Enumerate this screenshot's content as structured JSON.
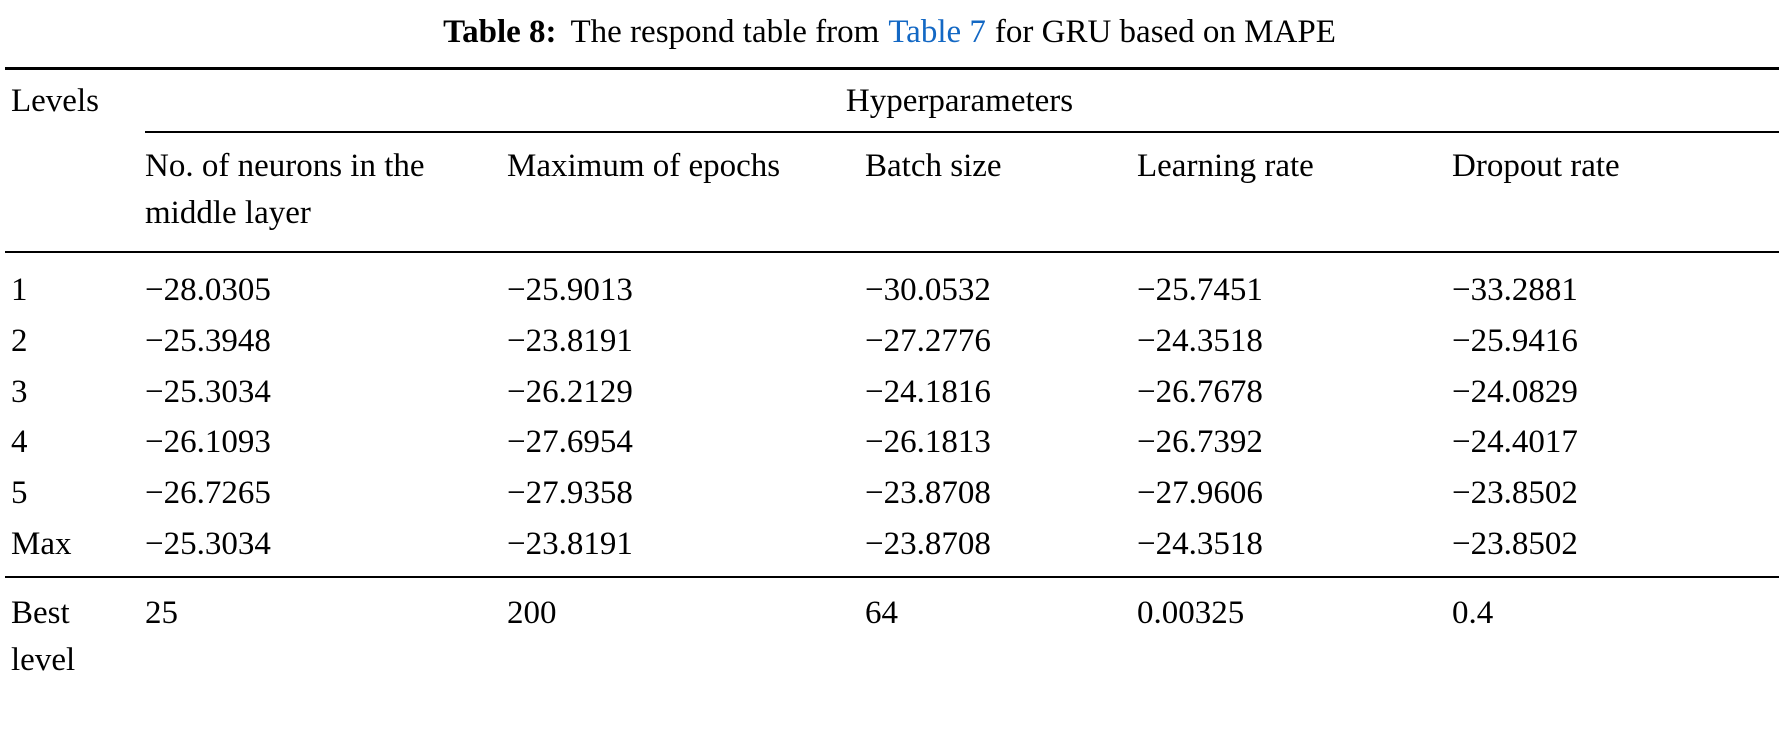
{
  "caption": {
    "label": "Table 8:",
    "text_before_link": "The respond table from",
    "link_text": "Table 7",
    "text_after_link": "for GRU based on MAPE",
    "link_color": "#1368c4"
  },
  "table": {
    "levels_header": "Levels",
    "group_header": "Hyperparameters",
    "columns": [
      "No. of neurons in the middle layer",
      "Maximum of epochs",
      "Batch size",
      "Learning rate",
      "Dropout rate"
    ],
    "rows": [
      {
        "level": "1",
        "values": [
          "−28.0305",
          "−25.9013",
          "−30.0532",
          "−25.7451",
          "−33.2881"
        ]
      },
      {
        "level": "2",
        "values": [
          "−25.3948",
          "−23.8191",
          "−27.2776",
          "−24.3518",
          "−25.9416"
        ]
      },
      {
        "level": "3",
        "values": [
          "−25.3034",
          "−26.2129",
          "−24.1816",
          "−26.7678",
          "−24.0829"
        ]
      },
      {
        "level": "4",
        "values": [
          "−26.1093",
          "−27.6954",
          "−26.1813",
          "−26.7392",
          "−24.4017"
        ]
      },
      {
        "level": "5",
        "values": [
          "−26.7265",
          "−27.9358",
          "−23.8708",
          "−27.9606",
          "−23.8502"
        ]
      },
      {
        "level": "Max",
        "values": [
          "−25.3034",
          "−23.8191",
          "−23.8708",
          "−24.3518",
          "−23.8502"
        ]
      }
    ],
    "best": {
      "label": "Best level",
      "values": [
        "25",
        "200",
        "64",
        "0.00325",
        "0.4"
      ]
    }
  }
}
